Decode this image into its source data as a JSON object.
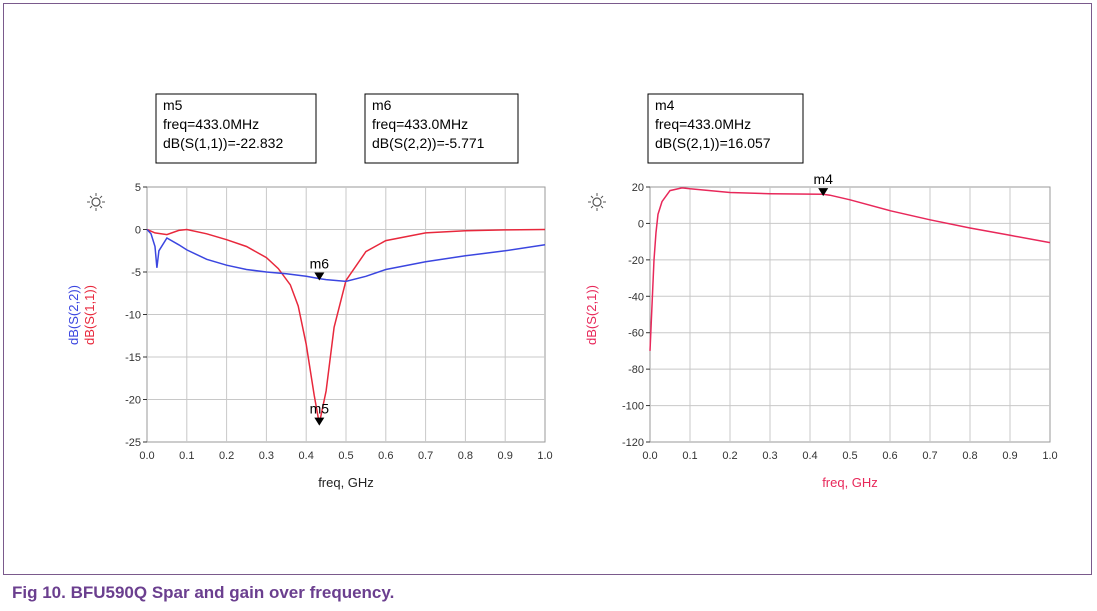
{
  "caption": "Fig 10. BFU590Q Spar and gain over frequency.",
  "markers": {
    "m5": {
      "name": "m5",
      "line1": "freq=433.0MHz",
      "line2": "dB(S(1,1))=-22.832"
    },
    "m6": {
      "name": "m6",
      "line1": "freq=433.0MHz",
      "line2": "dB(S(2,2))=-5.771"
    },
    "m4": {
      "name": "m4",
      "line1": "freq=433.0MHz",
      "line2": "dB(S(2,1))=16.057"
    }
  },
  "chart_data": [
    {
      "type": "line",
      "xlabel": "freq, GHz",
      "ylabels": [
        "dB(S(2,2))",
        "dB(S(1,1))"
      ],
      "xlim": [
        0,
        1.0
      ],
      "ylim": [
        -25,
        5
      ],
      "xticks": [
        "0.0",
        "0.1",
        "0.2",
        "0.3",
        "0.4",
        "0.5",
        "0.6",
        "0.7",
        "0.8",
        "0.9",
        "1.0"
      ],
      "yticks": [
        "5",
        "0",
        "-5",
        "-10",
        "-15",
        "-20",
        "-25"
      ],
      "grid": true,
      "series": [
        {
          "name": "dB(S(1,1))",
          "color": "#e8283c",
          "x": [
            0.0,
            0.02,
            0.05,
            0.08,
            0.1,
            0.15,
            0.2,
            0.25,
            0.3,
            0.33,
            0.36,
            0.38,
            0.4,
            0.42,
            0.433,
            0.45,
            0.47,
            0.5,
            0.55,
            0.6,
            0.7,
            0.8,
            0.9,
            1.0
          ],
          "y": [
            0,
            -0.4,
            -0.6,
            -0.1,
            0,
            -0.5,
            -1.2,
            -2,
            -3.3,
            -4.6,
            -6.5,
            -9,
            -13.5,
            -19.5,
            -22.832,
            -19,
            -11.5,
            -6,
            -2.6,
            -1.3,
            -0.4,
            -0.15,
            -0.05,
            0
          ]
        },
        {
          "name": "dB(S(2,2))",
          "color": "#3b46e0",
          "x": [
            0.0,
            0.01,
            0.02,
            0.025,
            0.03,
            0.05,
            0.08,
            0.1,
            0.15,
            0.2,
            0.25,
            0.3,
            0.35,
            0.4,
            0.433,
            0.45,
            0.5,
            0.55,
            0.6,
            0.7,
            0.8,
            0.9,
            1.0
          ],
          "y": [
            0,
            -0.5,
            -2,
            -4.5,
            -2.5,
            -1,
            -1.8,
            -2.4,
            -3.5,
            -4.2,
            -4.7,
            -5,
            -5.2,
            -5.5,
            -5.771,
            -5.9,
            -6.1,
            -5.5,
            -4.7,
            -3.8,
            -3.1,
            -2.5,
            -1.8
          ]
        }
      ],
      "markers": [
        {
          "name": "m6",
          "x": 0.433,
          "y": -5.771,
          "series": "dB(S(2,2))"
        },
        {
          "name": "m5",
          "x": 0.433,
          "y": -22.832,
          "series": "dB(S(1,1))"
        }
      ]
    },
    {
      "type": "line",
      "xlabel": "freq, GHz",
      "ylabels": [
        "dB(S(2,1))"
      ],
      "xlim": [
        0,
        1.0
      ],
      "ylim": [
        -120,
        20
      ],
      "xticks": [
        "0.0",
        "0.1",
        "0.2",
        "0.3",
        "0.4",
        "0.5",
        "0.6",
        "0.7",
        "0.8",
        "0.9",
        "1.0"
      ],
      "yticks": [
        "20",
        "0",
        "-20",
        "-40",
        "-60",
        "-80",
        "-100",
        "-120"
      ],
      "grid": true,
      "series": [
        {
          "name": "dB(S(2,1))",
          "color": "#e8285a",
          "x": [
            0.0,
            0.005,
            0.01,
            0.015,
            0.02,
            0.03,
            0.05,
            0.08,
            0.1,
            0.15,
            0.2,
            0.3,
            0.4,
            0.433,
            0.45,
            0.5,
            0.6,
            0.7,
            0.8,
            0.9,
            1.0
          ],
          "y": [
            -70,
            -45,
            -20,
            -5,
            5,
            12,
            18,
            19.5,
            19,
            18,
            17,
            16.3,
            16.1,
            16.057,
            15.5,
            13,
            7,
            2,
            -2.5,
            -6.5,
            -10.5
          ]
        }
      ],
      "markers": [
        {
          "name": "m4",
          "x": 0.433,
          "y": 16.057,
          "series": "dB(S(2,1))"
        }
      ]
    }
  ]
}
